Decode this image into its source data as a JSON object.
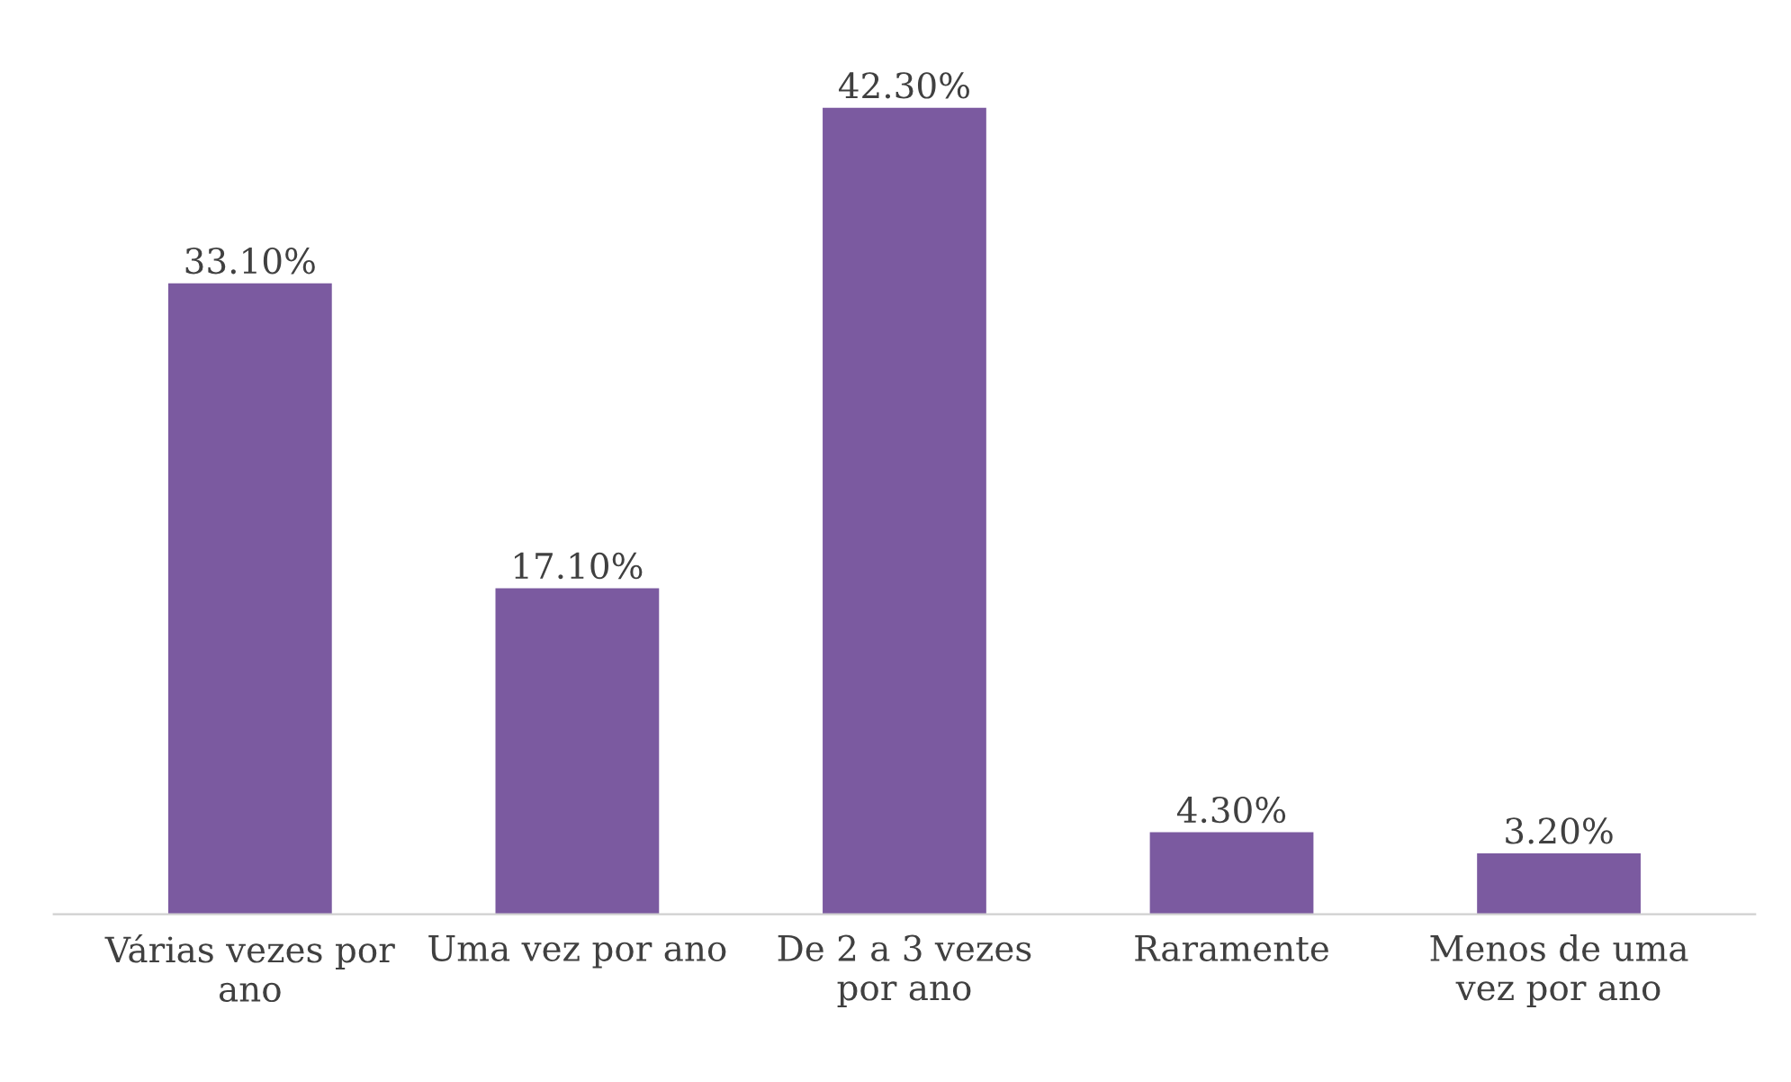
{
  "chart_data": {
    "type": "bar",
    "categories": [
      "Várias vezes por\nano",
      "Uma vez por ano",
      "De 2 a 3 vezes\npor ano",
      "Raramente",
      "Menos de uma\nvez por ano"
    ],
    "values": [
      33.1,
      17.1,
      42.3,
      4.3,
      3.2
    ],
    "value_labels": [
      "33.10%",
      "17.10%",
      "42.30%",
      "4.30%",
      "3.20%"
    ],
    "color": "#7b5aa0",
    "grid": false,
    "legend": false
  }
}
